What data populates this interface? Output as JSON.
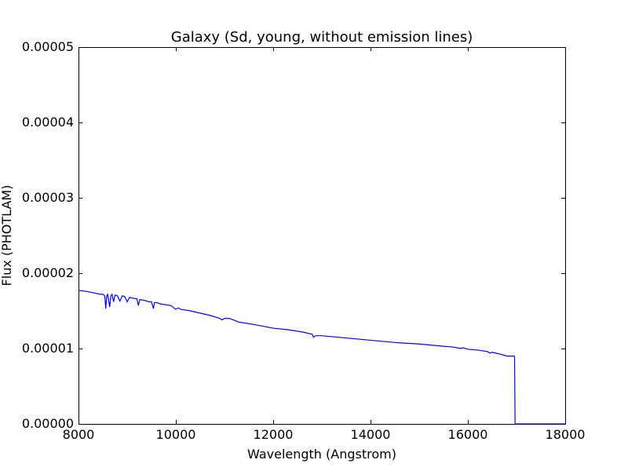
{
  "chart_data": {
    "type": "line",
    "title": "Galaxy (Sd, young, without emission lines)",
    "xlabel": "Wavelength (Angstrom)",
    "ylabel": "Flux (PHOTLAM)",
    "xlim": [
      8000,
      18000
    ],
    "ylim": [
      0,
      5e-05
    ],
    "x_ticks": [
      8000,
      10000,
      12000,
      14000,
      16000,
      18000
    ],
    "x_tick_labels": [
      "8000",
      "10000",
      "12000",
      "14000",
      "16000",
      "18000"
    ],
    "y_ticks": [
      0,
      1e-05,
      2e-05,
      3e-05,
      4e-05,
      5e-05
    ],
    "y_tick_labels": [
      "0.00000",
      "0.00001",
      "0.00002",
      "0.00003",
      "0.00004",
      "0.00005"
    ],
    "grid": false,
    "series": [
      {
        "color": "#0000ff",
        "x": [
          8000,
          8150,
          8300,
          8450,
          8500,
          8540,
          8560,
          8580,
          8600,
          8640,
          8665,
          8690,
          8720,
          8750,
          8800,
          8850,
          8900,
          8950,
          9000,
          9050,
          9100,
          9200,
          9230,
          9260,
          9350,
          9450,
          9500,
          9540,
          9560,
          9600,
          9700,
          9800,
          9900,
          10000,
          10050,
          10100,
          10300,
          10500,
          10700,
          10900,
          10950,
          11000,
          11100,
          11300,
          11600,
          12000,
          12300,
          12600,
          12800,
          12830,
          12870,
          13000,
          13500,
          14000,
          14500,
          15000,
          15500,
          15700,
          15850,
          15900,
          16000,
          16200,
          16400,
          16450,
          16500,
          16700,
          16800,
          16950,
          16960,
          16970,
          17000,
          17500,
          18000
        ],
        "y": [
          1.77e-05,
          1.76e-05,
          1.74e-05,
          1.72e-05,
          1.72e-05,
          1.7e-05,
          1.53e-05,
          1.7e-05,
          1.72e-05,
          1.55e-05,
          1.7e-05,
          1.72e-05,
          1.62e-05,
          1.71e-05,
          1.7e-05,
          1.63e-05,
          1.7e-05,
          1.69e-05,
          1.62e-05,
          1.68e-05,
          1.67e-05,
          1.66e-05,
          1.57e-05,
          1.65e-05,
          1.64e-05,
          1.62e-05,
          1.62e-05,
          1.53e-05,
          1.61e-05,
          1.61e-05,
          1.59e-05,
          1.58e-05,
          1.57e-05,
          1.52e-05,
          1.54e-05,
          1.52e-05,
          1.5e-05,
          1.47e-05,
          1.44e-05,
          1.4e-05,
          1.38e-05,
          1.4e-05,
          1.4e-05,
          1.35e-05,
          1.32e-05,
          1.27e-05,
          1.25e-05,
          1.22e-05,
          1.19e-05,
          1.15e-05,
          1.17e-05,
          1.17e-05,
          1.14e-05,
          1.11e-05,
          1.08e-05,
          1.06e-05,
          1.03e-05,
          1.02e-05,
          1e-05,
          1.01e-05,
          9.9e-06,
          9.8e-06,
          9.6e-06,
          9.4e-06,
          9.5e-06,
          9.2e-06,
          9e-06,
          9e-06,
          8.9e-06,
          0,
          0,
          0,
          0
        ]
      }
    ]
  }
}
